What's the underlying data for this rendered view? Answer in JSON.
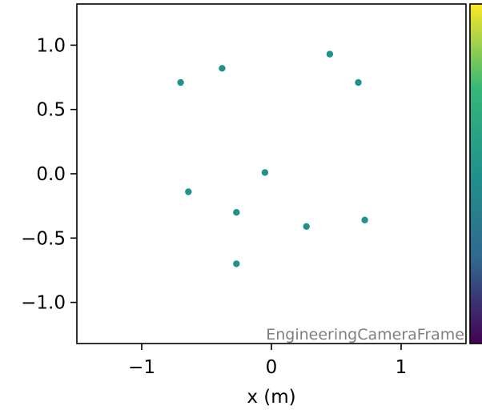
{
  "chart_data": {
    "type": "scatter",
    "title": "",
    "xlabel": "x  (m)",
    "ylabel": "",
    "xlim": [
      -1.5,
      1.5
    ],
    "ylim": [
      -1.32,
      1.32
    ],
    "xticks": [
      -1,
      0,
      1
    ],
    "xtick_labels": [
      "−1",
      "0",
      "1"
    ],
    "yticks": [
      1.0,
      0.5,
      0.0,
      -0.5,
      -1.0
    ],
    "ytick_labels": [
      "1.0",
      "0.5",
      "0.0",
      "−0.5",
      "−1.0"
    ],
    "grid": false,
    "annotation": "EngineeringCameraFrame",
    "point_color": "#21918c",
    "colorbar": {
      "colors": [
        "#fde725",
        "#35b779",
        "#21918c",
        "#31688e",
        "#440154"
      ]
    },
    "points": [
      {
        "x": -0.7,
        "y": 0.71
      },
      {
        "x": -0.38,
        "y": 0.82
      },
      {
        "x": 0.45,
        "y": 0.93
      },
      {
        "x": 0.67,
        "y": 0.71
      },
      {
        "x": -0.05,
        "y": 0.01
      },
      {
        "x": -0.64,
        "y": -0.14
      },
      {
        "x": -0.27,
        "y": -0.3
      },
      {
        "x": 0.27,
        "y": -0.41
      },
      {
        "x": 0.72,
        "y": -0.36
      },
      {
        "x": -0.27,
        "y": -0.7
      }
    ]
  }
}
